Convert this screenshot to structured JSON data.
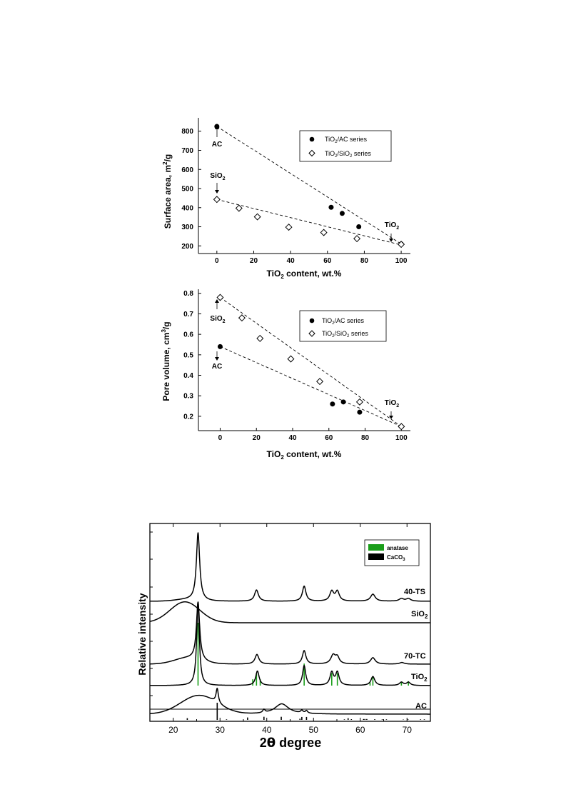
{
  "chart_data": [
    {
      "type": "scatter",
      "title": "",
      "xlabel": "TiO2 content, wt.%",
      "ylabel": "Surface area, m2/g",
      "xlim": [
        -10,
        105
      ],
      "ylim": [
        160,
        870
      ],
      "xticks": [
        0,
        20,
        40,
        60,
        80,
        100
      ],
      "yticks": [
        200,
        300,
        400,
        500,
        600,
        700,
        800
      ],
      "legend_position": "top-right",
      "series": [
        {
          "name": "TiO2/AC series",
          "marker": "filled-circle",
          "x": [
            0,
            62,
            68,
            77,
            100
          ],
          "y": [
            825,
            402,
            370,
            300,
            210
          ]
        },
        {
          "name": "TiO2/SiO2 series",
          "marker": "open-diamond",
          "x": [
            0,
            12,
            22,
            39,
            58,
            76,
            100
          ],
          "y": [
            443,
            397,
            352,
            298,
            270,
            238,
            208
          ]
        }
      ],
      "trendlines": [
        {
          "from": [
            0,
            825
          ],
          "to": [
            100,
            210
          ]
        },
        {
          "from": [
            0,
            443
          ],
          "to": [
            100,
            205
          ]
        }
      ],
      "annotations": [
        {
          "text": "AC",
          "x": 0,
          "y": 825,
          "arrow": "up"
        },
        {
          "text": "SiO2",
          "x": 0,
          "y": 443,
          "arrow": "down"
        },
        {
          "text": "TiO2",
          "x": 100,
          "y": 208,
          "arrow": "down"
        }
      ]
    },
    {
      "type": "scatter",
      "title": "",
      "xlabel": "TiO2 content, wt.%",
      "ylabel": "Pore volume, cm3/g",
      "xlim": [
        -12,
        105
      ],
      "ylim": [
        0.13,
        0.82
      ],
      "xticks": [
        0,
        20,
        40,
        60,
        80,
        100
      ],
      "yticks": [
        0.2,
        0.3,
        0.4,
        0.5,
        0.6,
        0.7,
        0.8
      ],
      "legend_position": "top-right",
      "series": [
        {
          "name": "TiO2/AC series",
          "marker": "filled-circle",
          "x": [
            0,
            62,
            68,
            77,
            100
          ],
          "y": [
            0.54,
            0.26,
            0.27,
            0.22,
            0.15
          ]
        },
        {
          "name": "TiO2/SiO2 series",
          "marker": "open-diamond",
          "x": [
            0,
            12,
            22,
            39,
            55,
            77,
            100
          ],
          "y": [
            0.78,
            0.68,
            0.58,
            0.48,
            0.37,
            0.27,
            0.15
          ]
        }
      ],
      "trendlines": [
        {
          "from": [
            0,
            0.78
          ],
          "to": [
            100,
            0.15
          ]
        },
        {
          "from": [
            0,
            0.54
          ],
          "to": [
            100,
            0.15
          ]
        }
      ],
      "annotations": [
        {
          "text": "SiO2",
          "x": 0,
          "y": 0.78,
          "arrow": "up"
        },
        {
          "text": "AC",
          "x": 0,
          "y": 0.54,
          "arrow": "down"
        },
        {
          "text": "TiO2",
          "x": 100,
          "y": 0.15,
          "arrow": "down"
        }
      ]
    },
    {
      "type": "line",
      "title": "",
      "xlabel": "2θ degree",
      "ylabel": "Relative intensity",
      "xlim": [
        15,
        75
      ],
      "xticks": [
        20,
        30,
        40,
        50,
        60,
        70
      ],
      "legend_position": "top-right",
      "legend": [
        {
          "name": "anatase",
          "color": "#1a9e1a"
        },
        {
          "name": "CaCO3",
          "color": "#000000"
        }
      ],
      "series": [
        {
          "name": "40-TS",
          "baseline": 0.2,
          "broad_hump": {
            "center": 23,
            "width": 3.5,
            "height": 0.05
          },
          "peaks": [
            [
              25.3,
              2.1,
              0.42
            ],
            [
              37.8,
              0.35,
              0.5
            ],
            [
              48.0,
              0.47,
              0.45
            ],
            [
              53.9,
              0.3,
              0.5
            ],
            [
              55.1,
              0.3,
              0.5
            ],
            [
              62.7,
              0.22,
              0.6
            ],
            [
              68.8,
              0.08,
              0.6
            ],
            [
              70.3,
              0.08,
              0.6
            ]
          ]
        },
        {
          "name": "SiO2",
          "baseline": 0.0,
          "broad_hump": {
            "center": 22.5,
            "width": 4.5,
            "height": 0.65
          },
          "peaks": []
        },
        {
          "name": "70-TC",
          "baseline": 0.0,
          "broad_hump": {
            "center": 23,
            "width": 4,
            "height": 0.18
          },
          "peaks": [
            [
              25.3,
              1.8,
              0.42
            ],
            [
              37.9,
              0.3,
              0.5
            ],
            [
              48.0,
              0.42,
              0.45
            ],
            [
              54.2,
              0.27,
              0.6
            ],
            [
              55.1,
              0.2,
              0.5
            ],
            [
              62.7,
              0.2,
              0.6
            ],
            [
              68.9,
              0.05,
              0.6
            ]
          ]
        },
        {
          "name": "TiO2",
          "baseline": 0.0,
          "broad_hump": {
            "center": 23,
            "width": 3,
            "height": 0.0
          },
          "peaks": [
            [
              25.3,
              2.6,
              0.35
            ],
            [
              38.0,
              0.45,
              0.45
            ],
            [
              48.0,
              0.62,
              0.4
            ],
            [
              53.9,
              0.4,
              0.45
            ],
            [
              55.1,
              0.4,
              0.45
            ],
            [
              62.7,
              0.28,
              0.5
            ],
            [
              68.8,
              0.1,
              0.5
            ],
            [
              70.3,
              0.1,
              0.5
            ]
          ]
        },
        {
          "name": "AC",
          "baseline": 0.0,
          "broad_hump": {
            "center": 25.5,
            "width": 5.5,
            "height": 0.58
          },
          "peaks": [
            [
              29.4,
              0.45,
              0.3
            ],
            [
              39.4,
              0.1,
              0.3
            ],
            [
              43.2,
              0.32,
              1.8
            ],
            [
              47.5,
              0.08,
              0.3
            ],
            [
              48.5,
              0.08,
              0.3
            ]
          ]
        }
      ],
      "reference_sticks": [
        {
          "name": "anatase",
          "color": "#1a9e1a",
          "positions": [
            25.3,
            37.0,
            37.8,
            38.6,
            48.0,
            53.9,
            55.1,
            62.1,
            62.7,
            68.8,
            70.3
          ],
          "intensities": [
            1.0,
            0.1,
            0.2,
            0.1,
            0.35,
            0.2,
            0.2,
            0.05,
            0.14,
            0.06,
            0.07
          ]
        },
        {
          "name": "CaCO3",
          "color": "#000000",
          "positions": [
            23.0,
            29.4,
            31.4,
            35.9,
            39.4,
            43.1,
            47.1,
            47.5,
            48.5,
            56.6,
            57.4,
            58.1,
            60.7,
            61.0,
            61.4,
            63.1,
            64.7,
            65.6,
            69.2,
            70.2,
            72.9,
            73.7
          ],
          "intensities": [
            0.1,
            1.0,
            0.03,
            0.14,
            0.18,
            0.18,
            0.07,
            0.17,
            0.17,
            0.03,
            0.1,
            0.04,
            0.05,
            0.05,
            0.05,
            0.04,
            0.03,
            0.03,
            0.02,
            0.03,
            0.03,
            0.03
          ]
        }
      ]
    }
  ],
  "text": {
    "c1": {
      "xlabel_main": "TiO",
      "xlabel_sub": "2",
      "xlabel_rest": " content, wt.%",
      "ylabel_main": "Surface area, m",
      "ylabel_sup": "2",
      "ylabel_rest": "/g",
      "leg1_main": "TiO",
      "leg1_sub": "2",
      "leg1_rest": "/AC series",
      "leg2_main": "TiO",
      "leg2_sub": "2",
      "leg2_mid": "/SiO",
      "leg2_sub2": "2",
      "leg2_rest": " series",
      "ann_ac": "AC",
      "ann_sio2_main": "SiO",
      "ann_sio2_sub": "2",
      "ann_tio2_main": "TiO",
      "ann_tio2_sub": "2"
    },
    "c2": {
      "xlabel_main": "TiO",
      "xlabel_sub": "2",
      "xlabel_rest": " content, wt.%",
      "ylabel_main": "Pore volume, cm",
      "ylabel_sup": "3",
      "ylabel_rest": "/g",
      "leg1_main": "TiO",
      "leg1_sub": "2",
      "leg1_rest": "/AC series",
      "leg2_main": "TiO",
      "leg2_sub": "2",
      "leg2_mid": "/SiO",
      "leg2_sub2": "2",
      "leg2_rest": " series",
      "ann_ac": "AC",
      "ann_sio2_main": "SiO",
      "ann_sio2_sub": "2",
      "ann_tio2_main": "TiO",
      "ann_tio2_sub": "2"
    },
    "c3": {
      "xlabel_pre": "2",
      "xlabel_theta": "θ",
      "xlabel_rest": " degree",
      "ylabel": "Relative intensity",
      "leg_anatase": "anatase",
      "leg_caco3_main": "CaCO",
      "leg_caco3_sub": "3",
      "lbl_40ts": "40-TS",
      "lbl_sio2_main": "SiO",
      "lbl_sio2_sub": "2",
      "lbl_70tc": "70-TC",
      "lbl_tio2_main": "TiO",
      "lbl_tio2_sub": "2",
      "lbl_ac": "AC"
    }
  }
}
